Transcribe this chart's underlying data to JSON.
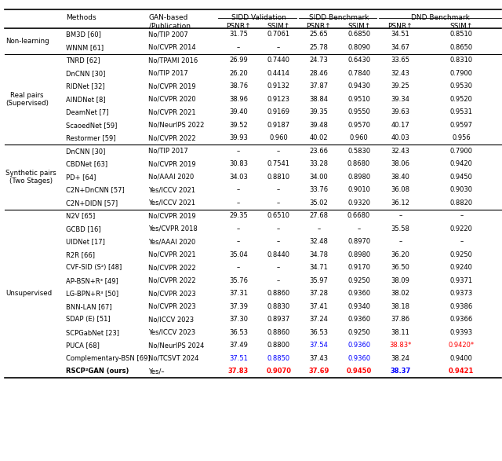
{
  "fig_width": 6.4,
  "fig_height": 5.87,
  "title": "",
  "groups": [
    {
      "label": "Non-learning",
      "rows": [
        {
          "method": "BM3D [60]",
          "pub": "No/TIP 2007",
          "sidd_val_psnr": "31.75",
          "sidd_val_ssim": "0.7061",
          "sidd_bench_psnr": "25.65",
          "sidd_bench_ssim": "0.6850",
          "dnd_psnr": "34.51",
          "dnd_ssim": "0.8510",
          "bold": false,
          "color_sidd_val_psnr": "black",
          "color_sidd_val_ssim": "black",
          "color_sidd_bench_psnr": "black",
          "color_sidd_bench_ssim": "black",
          "color_dnd_psnr": "black",
          "color_dnd_ssim": "black"
        },
        {
          "method": "WNNM [61]",
          "pub": "No/CVPR 2014",
          "sidd_val_psnr": "–",
          "sidd_val_ssim": "–",
          "sidd_bench_psnr": "25.78",
          "sidd_bench_ssim": "0.8090",
          "dnd_psnr": "34.67",
          "dnd_ssim": "0.8650",
          "bold": false,
          "color_sidd_val_psnr": "black",
          "color_sidd_val_ssim": "black",
          "color_sidd_bench_psnr": "black",
          "color_sidd_bench_ssim": "black",
          "color_dnd_psnr": "black",
          "color_dnd_ssim": "black"
        }
      ]
    },
    {
      "label": "Real pairs\n(Supervised)",
      "rows": [
        {
          "method": "TNRD [62]",
          "pub": "No/TPAMI 2016",
          "sidd_val_psnr": "26.99",
          "sidd_val_ssim": "0.7440",
          "sidd_bench_psnr": "24.73",
          "sidd_bench_ssim": "0.6430",
          "dnd_psnr": "33.65",
          "dnd_ssim": "0.8310",
          "bold": false,
          "color_sidd_val_psnr": "black",
          "color_sidd_val_ssim": "black",
          "color_sidd_bench_psnr": "black",
          "color_sidd_bench_ssim": "black",
          "color_dnd_psnr": "black",
          "color_dnd_ssim": "black"
        },
        {
          "method": "DnCNN [30]",
          "pub": "No/TIP 2017",
          "sidd_val_psnr": "26.20",
          "sidd_val_ssim": "0.4414",
          "sidd_bench_psnr": "28.46",
          "sidd_bench_ssim": "0.7840",
          "dnd_psnr": "32.43",
          "dnd_ssim": "0.7900",
          "bold": false,
          "color_sidd_val_psnr": "black",
          "color_sidd_val_ssim": "black",
          "color_sidd_bench_psnr": "black",
          "color_sidd_bench_ssim": "black",
          "color_dnd_psnr": "black",
          "color_dnd_ssim": "black"
        },
        {
          "method": "RIDNet [32]",
          "pub": "No/CVPR 2019",
          "sidd_val_psnr": "38.76",
          "sidd_val_ssim": "0.9132",
          "sidd_bench_psnr": "37.87",
          "sidd_bench_ssim": "0.9430",
          "dnd_psnr": "39.25",
          "dnd_ssim": "0.9530",
          "bold": false,
          "color_sidd_val_psnr": "black",
          "color_sidd_val_ssim": "black",
          "color_sidd_bench_psnr": "black",
          "color_sidd_bench_ssim": "black",
          "color_dnd_psnr": "black",
          "color_dnd_ssim": "black"
        },
        {
          "method": "AINDNet [8]",
          "pub": "No/CVPR 2020",
          "sidd_val_psnr": "38.96",
          "sidd_val_ssim": "0.9123",
          "sidd_bench_psnr": "38.84",
          "sidd_bench_ssim": "0.9510",
          "dnd_psnr": "39.34",
          "dnd_ssim": "0.9520",
          "bold": false,
          "color_sidd_val_psnr": "black",
          "color_sidd_val_ssim": "black",
          "color_sidd_bench_psnr": "black",
          "color_sidd_bench_ssim": "black",
          "color_dnd_psnr": "black",
          "color_dnd_ssim": "black"
        },
        {
          "method": "DeamNet [7]",
          "pub": "No/CVPR 2021",
          "sidd_val_psnr": "39.40",
          "sidd_val_ssim": "0.9169",
          "sidd_bench_psnr": "39.35",
          "sidd_bench_ssim": "0.9550",
          "dnd_psnr": "39.63",
          "dnd_ssim": "0.9531",
          "bold": false,
          "color_sidd_val_psnr": "black",
          "color_sidd_val_ssim": "black",
          "color_sidd_bench_psnr": "black",
          "color_sidd_bench_ssim": "black",
          "color_dnd_psnr": "black",
          "color_dnd_ssim": "black"
        },
        {
          "method": "ScaoedNet [59]",
          "pub": "No/NeurIPS 2022",
          "sidd_val_psnr": "39.52",
          "sidd_val_ssim": "0.9187",
          "sidd_bench_psnr": "39.48",
          "sidd_bench_ssim": "0.9570",
          "dnd_psnr": "40.17",
          "dnd_ssim": "0.9597",
          "bold": false,
          "color_sidd_val_psnr": "black",
          "color_sidd_val_ssim": "black",
          "color_sidd_bench_psnr": "black",
          "color_sidd_bench_ssim": "black",
          "color_dnd_psnr": "black",
          "color_dnd_ssim": "black"
        },
        {
          "method": "Restormer [59]",
          "pub": "No/CVPR 2022",
          "sidd_val_psnr": "39.93",
          "sidd_val_ssim": "0.960",
          "sidd_bench_psnr": "40.02",
          "sidd_bench_ssim": "0.960",
          "dnd_psnr": "40.03",
          "dnd_ssim": "0.956",
          "bold": false,
          "color_sidd_val_psnr": "black",
          "color_sidd_val_ssim": "black",
          "color_sidd_bench_psnr": "black",
          "color_sidd_bench_ssim": "black",
          "color_dnd_psnr": "black",
          "color_dnd_ssim": "black"
        }
      ]
    },
    {
      "label": "Synthetic pairs\n(Two Stages)",
      "rows": [
        {
          "method": "DnCNN [30]",
          "pub": "No/TIP 2017",
          "sidd_val_psnr": "–",
          "sidd_val_ssim": "–",
          "sidd_bench_psnr": "23.66",
          "sidd_bench_ssim": "0.5830",
          "dnd_psnr": "32.43",
          "dnd_ssim": "0.7900",
          "bold": false,
          "color_sidd_val_psnr": "black",
          "color_sidd_val_ssim": "black",
          "color_sidd_bench_psnr": "black",
          "color_sidd_bench_ssim": "black",
          "color_dnd_psnr": "black",
          "color_dnd_ssim": "black"
        },
        {
          "method": "CBDNet [63]",
          "pub": "No/CVPR 2019",
          "sidd_val_psnr": "30.83",
          "sidd_val_ssim": "0.7541",
          "sidd_bench_psnr": "33.28",
          "sidd_bench_ssim": "0.8680",
          "dnd_psnr": "38.06",
          "dnd_ssim": "0.9420",
          "bold": false,
          "color_sidd_val_psnr": "black",
          "color_sidd_val_ssim": "black",
          "color_sidd_bench_psnr": "black",
          "color_sidd_bench_ssim": "black",
          "color_dnd_psnr": "black",
          "color_dnd_ssim": "black"
        },
        {
          "method": "PD+ [64]",
          "pub": "No/AAAI 2020",
          "sidd_val_psnr": "34.03",
          "sidd_val_ssim": "0.8810",
          "sidd_bench_psnr": "34.00",
          "sidd_bench_ssim": "0.8980",
          "dnd_psnr": "38.40",
          "dnd_ssim": "0.9450",
          "bold": false,
          "color_sidd_val_psnr": "black",
          "color_sidd_val_ssim": "black",
          "color_sidd_bench_psnr": "black",
          "color_sidd_bench_ssim": "black",
          "color_dnd_psnr": "black",
          "color_dnd_ssim": "black"
        },
        {
          "method": "C2N+DnCNN [57]",
          "pub": "Yes/ICCV 2021",
          "sidd_val_psnr": "–",
          "sidd_val_ssim": "–",
          "sidd_bench_psnr": "33.76",
          "sidd_bench_ssim": "0.9010",
          "dnd_psnr": "36.08",
          "dnd_ssim": "0.9030",
          "bold": false,
          "color_sidd_val_psnr": "black",
          "color_sidd_val_ssim": "black",
          "color_sidd_bench_psnr": "black",
          "color_sidd_bench_ssim": "black",
          "color_dnd_psnr": "black",
          "color_dnd_ssim": "black"
        },
        {
          "method": "C2N+DIDN [57]",
          "pub": "Yes/ICCV 2021",
          "sidd_val_psnr": "–",
          "sidd_val_ssim": "–",
          "sidd_bench_psnr": "35.02",
          "sidd_bench_ssim": "0.9320",
          "dnd_psnr": "36.12",
          "dnd_ssim": "0.8820",
          "bold": false,
          "color_sidd_val_psnr": "black",
          "color_sidd_val_ssim": "black",
          "color_sidd_bench_psnr": "black",
          "color_sidd_bench_ssim": "black",
          "color_dnd_psnr": "black",
          "color_dnd_ssim": "black"
        }
      ]
    },
    {
      "label": "Unsupervised",
      "rows": [
        {
          "method": "N2V [65]",
          "pub": "No/CVPR 2019",
          "sidd_val_psnr": "29.35",
          "sidd_val_ssim": "0.6510",
          "sidd_bench_psnr": "27.68",
          "sidd_bench_ssim": "0.6680",
          "dnd_psnr": "–",
          "dnd_ssim": "–",
          "bold": false,
          "color_sidd_val_psnr": "black",
          "color_sidd_val_ssim": "black",
          "color_sidd_bench_psnr": "black",
          "color_sidd_bench_ssim": "black",
          "color_dnd_psnr": "black",
          "color_dnd_ssim": "black"
        },
        {
          "method": "GCBD [16]",
          "pub": "Yes/CVPR 2018",
          "sidd_val_psnr": "–",
          "sidd_val_ssim": "–",
          "sidd_bench_psnr": "–",
          "sidd_bench_ssim": "–",
          "dnd_psnr": "35.58",
          "dnd_ssim": "0.9220",
          "bold": false,
          "color_sidd_val_psnr": "black",
          "color_sidd_val_ssim": "black",
          "color_sidd_bench_psnr": "black",
          "color_sidd_bench_ssim": "black",
          "color_dnd_psnr": "black",
          "color_dnd_ssim": "black"
        },
        {
          "method": "UIDNet [17]",
          "pub": "Yes/AAAI 2020",
          "sidd_val_psnr": "–",
          "sidd_val_ssim": "–",
          "sidd_bench_psnr": "32.48",
          "sidd_bench_ssim": "0.8970",
          "dnd_psnr": "–",
          "dnd_ssim": "–",
          "bold": false,
          "color_sidd_val_psnr": "black",
          "color_sidd_val_ssim": "black",
          "color_sidd_bench_psnr": "black",
          "color_sidd_bench_ssim": "black",
          "color_dnd_psnr": "black",
          "color_dnd_ssim": "black"
        },
        {
          "method": "R2R [66]",
          "pub": "No/CVPR 2021",
          "sidd_val_psnr": "35.04",
          "sidd_val_ssim": "0.8440",
          "sidd_bench_psnr": "34.78",
          "sidd_bench_ssim": "0.8980",
          "dnd_psnr": "36.20",
          "dnd_ssim": "0.9250",
          "bold": false,
          "color_sidd_val_psnr": "black",
          "color_sidd_val_ssim": "black",
          "color_sidd_bench_psnr": "black",
          "color_sidd_bench_ssim": "black",
          "color_dnd_psnr": "black",
          "color_dnd_ssim": "black"
        },
        {
          "method": "CVF-SID (S²) [48]",
          "pub": "No/CVPR 2022",
          "sidd_val_psnr": "–",
          "sidd_val_ssim": "–",
          "sidd_bench_psnr": "34.71",
          "sidd_bench_ssim": "0.9170",
          "dnd_psnr": "36.50",
          "dnd_ssim": "0.9240",
          "bold": false,
          "color_sidd_val_psnr": "black",
          "color_sidd_val_ssim": "black",
          "color_sidd_bench_psnr": "black",
          "color_sidd_bench_ssim": "black",
          "color_dnd_psnr": "black",
          "color_dnd_ssim": "black"
        },
        {
          "method": "AP-BSN+R³ [49]",
          "pub": "No/CVPR 2022",
          "sidd_val_psnr": "35.76",
          "sidd_val_ssim": "–",
          "sidd_bench_psnr": "35.97",
          "sidd_bench_ssim": "0.9250",
          "dnd_psnr": "38.09",
          "dnd_ssim": "0.9371",
          "bold": false,
          "color_sidd_val_psnr": "black",
          "color_sidd_val_ssim": "black",
          "color_sidd_bench_psnr": "black",
          "color_sidd_bench_ssim": "black",
          "color_dnd_psnr": "black",
          "color_dnd_ssim": "black"
        },
        {
          "method": "LG-BPN+R³ [50]",
          "pub": "No/CVPR 2023",
          "sidd_val_psnr": "37.31",
          "sidd_val_ssim": "0.8860",
          "sidd_bench_psnr": "37.28",
          "sidd_bench_ssim": "0.9360",
          "dnd_psnr": "38.02",
          "dnd_ssim": "0.9373",
          "bold": false,
          "color_sidd_val_psnr": "black",
          "color_sidd_val_ssim": "black",
          "color_sidd_bench_psnr": "black",
          "color_sidd_bench_ssim": "black",
          "color_dnd_psnr": "black",
          "color_dnd_ssim": "black"
        },
        {
          "method": "BNN-LAN [67]",
          "pub": "No/CVPR 2023",
          "sidd_val_psnr": "37.39",
          "sidd_val_ssim": "0.8830",
          "sidd_bench_psnr": "37.41",
          "sidd_bench_ssim": "0.9340",
          "dnd_psnr": "38.18",
          "dnd_ssim": "0.9386",
          "bold": false,
          "color_sidd_val_psnr": "black",
          "color_sidd_val_ssim": "black",
          "color_sidd_bench_psnr": "black",
          "color_sidd_bench_ssim": "black",
          "color_dnd_psnr": "black",
          "color_dnd_ssim": "black"
        },
        {
          "method": "SDAP (E) [51]",
          "pub": "No/ICCV 2023",
          "sidd_val_psnr": "37.30",
          "sidd_val_ssim": "0.8937",
          "sidd_bench_psnr": "37.24",
          "sidd_bench_ssim": "0.9360",
          "dnd_psnr": "37.86",
          "dnd_ssim": "0.9366",
          "bold": false,
          "color_sidd_val_psnr": "black",
          "color_sidd_val_ssim": "black",
          "color_sidd_bench_psnr": "black",
          "color_sidd_bench_ssim": "black",
          "color_dnd_psnr": "black",
          "color_dnd_ssim": "black"
        },
        {
          "method": "SCPGabNet [23]",
          "pub": "Yes/ICCV 2023",
          "sidd_val_psnr": "36.53",
          "sidd_val_ssim": "0.8860",
          "sidd_bench_psnr": "36.53",
          "sidd_bench_ssim": "0.9250",
          "dnd_psnr": "38.11",
          "dnd_ssim": "0.9393",
          "bold": false,
          "color_sidd_val_psnr": "black",
          "color_sidd_val_ssim": "black",
          "color_sidd_bench_psnr": "black",
          "color_sidd_bench_ssim": "black",
          "color_dnd_psnr": "black",
          "color_dnd_ssim": "black"
        },
        {
          "method": "PUCA [68]",
          "pub": "No/NeurIPS 2024",
          "sidd_val_psnr": "37.49",
          "sidd_val_ssim": "0.8800",
          "sidd_bench_psnr": "37.54",
          "sidd_bench_ssim": "0.9360",
          "dnd_psnr": "38.83*",
          "dnd_ssim": "0.9420*",
          "bold": false,
          "color_sidd_val_psnr": "black",
          "color_sidd_val_ssim": "black",
          "color_sidd_bench_psnr": "blue",
          "color_sidd_bench_ssim": "blue",
          "color_dnd_psnr": "red",
          "color_dnd_ssim": "red"
        },
        {
          "method": "Complementary-BSN [69]",
          "pub": "No/TCSVT 2024",
          "sidd_val_psnr": "37.51",
          "sidd_val_ssim": "0.8850",
          "sidd_bench_psnr": "37.43",
          "sidd_bench_ssim": "0.9360",
          "dnd_psnr": "38.24",
          "dnd_ssim": "0.9400",
          "bold": false,
          "color_sidd_val_psnr": "blue",
          "color_sidd_val_ssim": "blue",
          "color_sidd_bench_psnr": "black",
          "color_sidd_bench_ssim": "blue",
          "color_dnd_psnr": "black",
          "color_dnd_ssim": "black"
        },
        {
          "method": "RSCP²GAN (ours)",
          "pub": "Yes/–",
          "sidd_val_psnr": "37.83",
          "sidd_val_ssim": "0.9070",
          "sidd_bench_psnr": "37.69",
          "sidd_bench_ssim": "0.9450",
          "dnd_psnr": "38.37",
          "dnd_ssim": "0.9421",
          "bold": true,
          "color_sidd_val_psnr": "red",
          "color_sidd_val_ssim": "red",
          "color_sidd_bench_psnr": "red",
          "color_sidd_bench_ssim": "red",
          "color_dnd_psnr": "blue",
          "color_dnd_ssim": "red"
        }
      ]
    }
  ],
  "col_headers_row1": [
    "",
    "Methods",
    "GAN-based",
    "SIDD Validation",
    "",
    "SIDD Benchmark",
    "",
    "DND Benchmark",
    ""
  ],
  "col_headers_row2": [
    "",
    "",
    "/Publication",
    "PSNR↑",
    "SSIM↑",
    "PSNR↑",
    "SSIM↑",
    "PSNR↑",
    "SSIM↑"
  ]
}
